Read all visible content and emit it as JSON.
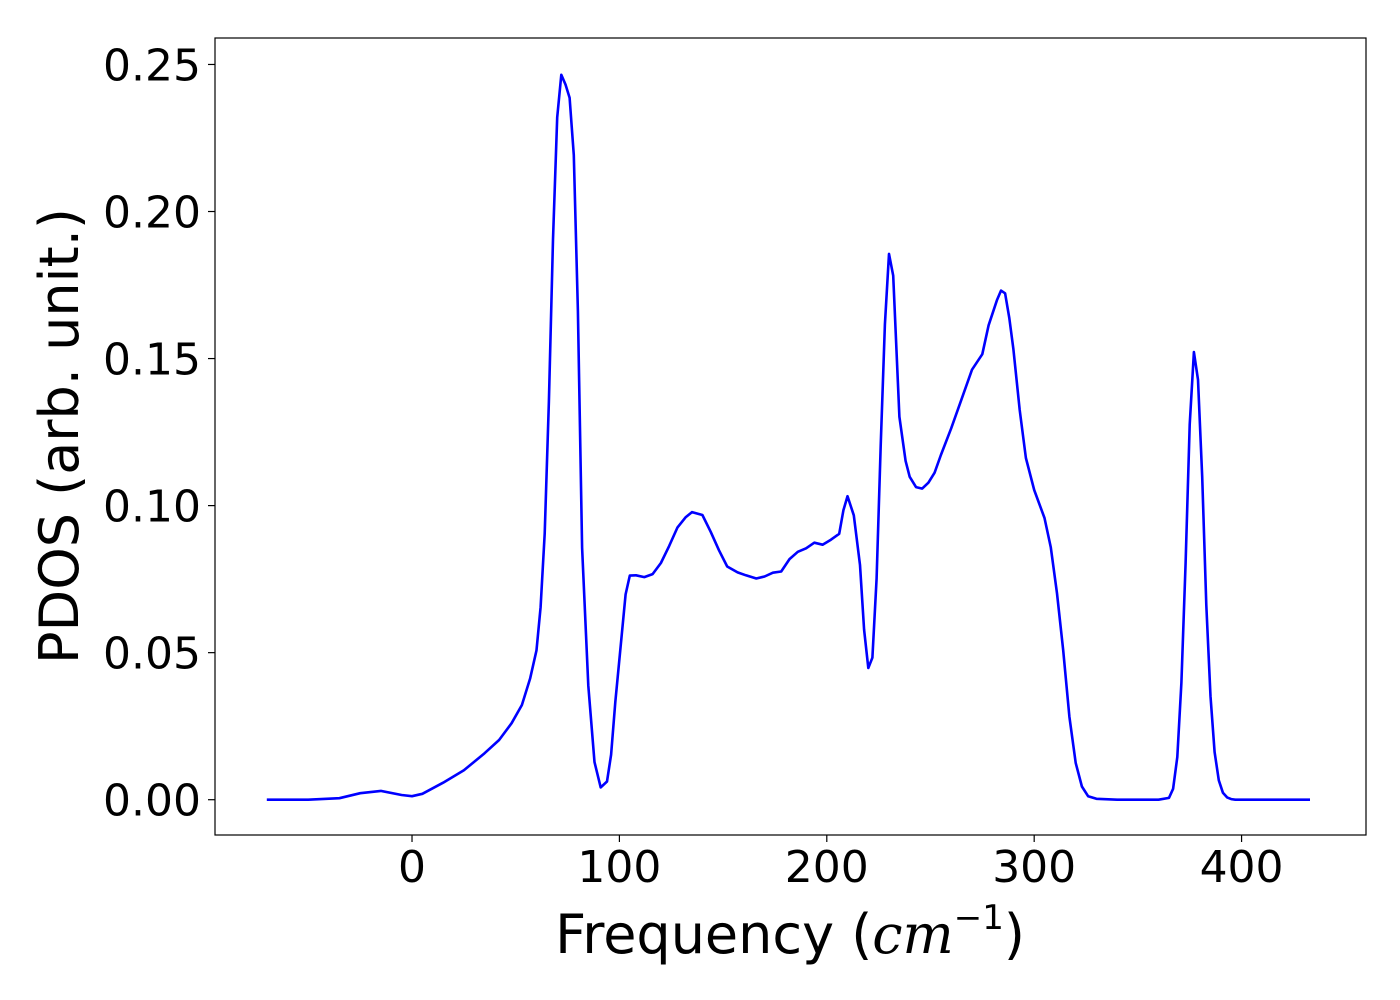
{
  "chart_data": {
    "type": "line",
    "title": "",
    "xlabel_text": "Frequency (",
    "xlabel_unit": "cm",
    "xlabel_exp": "−1",
    "xlabel_close": ")",
    "ylabel": "PDOS (arb. unit.)",
    "xlim": [
      -95,
      460
    ],
    "ylim": [
      -0.012,
      0.259
    ],
    "xticks": [
      0,
      100,
      200,
      300,
      400
    ],
    "xtick_labels": [
      "0",
      "100",
      "200",
      "300",
      "400"
    ],
    "yticks": [
      0.0,
      0.05,
      0.1,
      0.15,
      0.2,
      0.25
    ],
    "ytick_labels": [
      "0.00",
      "0.05",
      "0.10",
      "0.15",
      "0.20",
      "0.25"
    ],
    "grid": false,
    "legend": "none",
    "series": [
      {
        "color": "#0000ff",
        "x": [
          -70,
          -50,
          -35,
          -25,
          -15,
          -5,
          0,
          5,
          15,
          25,
          35,
          42,
          48,
          53,
          57,
          60,
          62,
          64,
          66,
          68,
          70,
          72,
          74,
          76,
          78,
          80,
          82,
          85,
          88,
          91,
          94,
          96,
          98,
          101,
          103,
          105,
          108,
          112,
          116,
          120,
          124,
          128,
          132,
          135,
          140,
          144,
          148,
          152,
          157,
          161,
          166,
          170,
          174,
          178,
          182,
          186,
          190,
          194,
          198,
          202,
          206,
          208,
          210,
          213,
          216,
          218,
          220,
          222,
          224,
          226,
          228,
          230,
          232,
          235,
          238,
          240,
          243,
          246,
          249,
          252,
          255,
          260,
          265,
          270,
          275,
          278,
          282,
          284,
          286,
          288,
          290,
          293,
          296,
          300,
          305,
          308,
          311,
          314,
          317,
          320,
          323,
          326,
          330,
          340,
          360,
          365,
          367,
          369,
          371,
          373,
          375,
          377,
          379,
          381,
          383,
          385,
          387,
          389,
          391,
          393,
          395,
          397,
          400,
          405,
          420,
          433
        ],
        "y": [
          0.0,
          0.0,
          0.0005,
          0.0022,
          0.003,
          0.0016,
          0.0012,
          0.002,
          0.0058,
          0.01,
          0.0158,
          0.0203,
          0.026,
          0.0322,
          0.0413,
          0.0508,
          0.0655,
          0.0905,
          0.1355,
          0.1905,
          0.232,
          0.2465,
          0.2432,
          0.2387,
          0.2192,
          0.1662,
          0.0857,
          0.0388,
          0.0128,
          0.0042,
          0.0062,
          0.0153,
          0.0332,
          0.0552,
          0.0698,
          0.0762,
          0.0763,
          0.0757,
          0.0767,
          0.0805,
          0.0863,
          0.0926,
          0.0961,
          0.0978,
          0.0968,
          0.0911,
          0.0848,
          0.0793,
          0.0773,
          0.0763,
          0.0752,
          0.0759,
          0.0772,
          0.0776,
          0.0818,
          0.0843,
          0.0855,
          0.0874,
          0.0867,
          0.0884,
          0.0904,
          0.0984,
          0.1032,
          0.0967,
          0.0798,
          0.0578,
          0.0448,
          0.0483,
          0.0752,
          0.1204,
          0.1616,
          0.1856,
          0.1782,
          0.1302,
          0.1152,
          0.1098,
          0.1063,
          0.1058,
          0.1078,
          0.1112,
          0.1172,
          0.1263,
          0.1362,
          0.1462,
          0.1515,
          0.1613,
          0.1698,
          0.1731,
          0.1722,
          0.1638,
          0.1532,
          0.1325,
          0.1162,
          0.1053,
          0.0958,
          0.0858,
          0.0702,
          0.0508,
          0.0282,
          0.0125,
          0.0045,
          0.0012,
          0.0003,
          0.0,
          0.0,
          0.0006,
          0.0037,
          0.0145,
          0.0398,
          0.0805,
          0.1275,
          0.1522,
          0.1428,
          0.1098,
          0.0662,
          0.0352,
          0.0162,
          0.0066,
          0.0024,
          0.0008,
          0.0002,
          0.0,
          0.0,
          0.0,
          0.0,
          0.0
        ]
      }
    ]
  }
}
